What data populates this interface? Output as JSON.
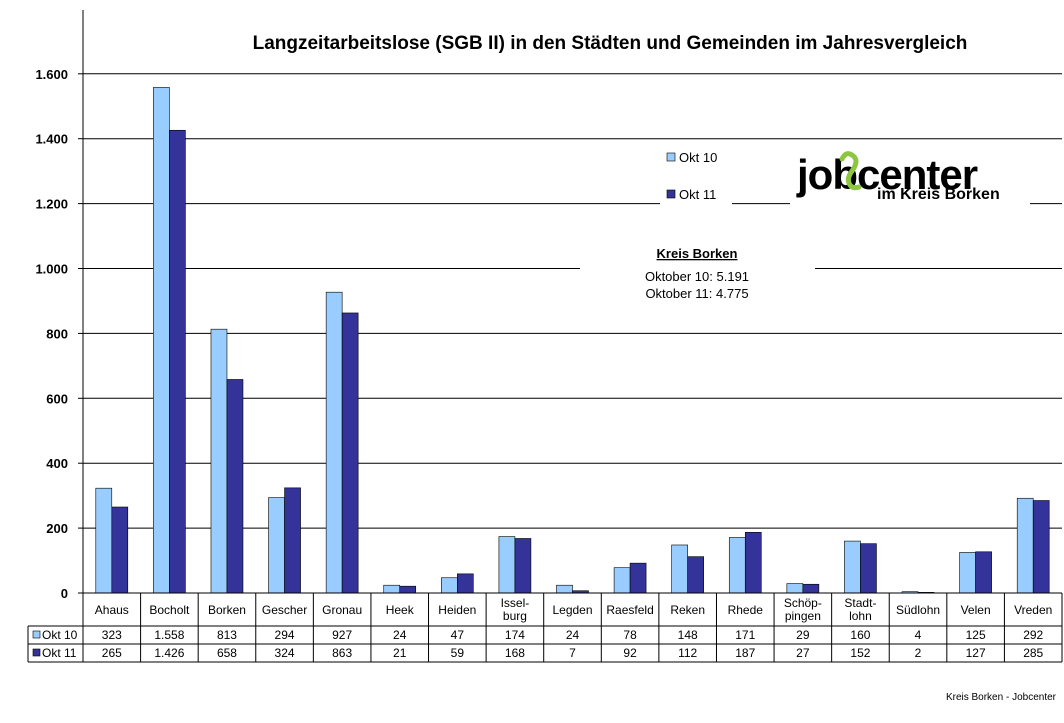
{
  "chart_data": {
    "type": "bar",
    "title": "Langzeitarbeitslose (SGB II) in den Städten und Gemeinden im Jahresvergleich",
    "categories": [
      [
        "Ahaus"
      ],
      [
        "Bocholt"
      ],
      [
        "Borken"
      ],
      [
        "Gescher"
      ],
      [
        "Gronau"
      ],
      [
        "Heek"
      ],
      [
        "Heiden"
      ],
      [
        "Issel-",
        "burg"
      ],
      [
        "Legden"
      ],
      [
        "Raesfeld"
      ],
      [
        "Reken"
      ],
      [
        "Rhede"
      ],
      [
        "Schöp-",
        "pingen"
      ],
      [
        "Stadt-",
        "lohn"
      ],
      [
        "Südlohn"
      ],
      [
        "Velen"
      ],
      [
        "Vreden"
      ]
    ],
    "series": [
      {
        "name": "Okt 10",
        "color": "#99CCFF",
        "values": [
          323,
          1558,
          813,
          294,
          927,
          24,
          47,
          174,
          24,
          78,
          148,
          171,
          29,
          160,
          4,
          125,
          292
        ],
        "labels": [
          "323",
          "1.558",
          "813",
          "294",
          "927",
          "24",
          "47",
          "174",
          "24",
          "78",
          "148",
          "171",
          "29",
          "160",
          "4",
          "125",
          "292"
        ]
      },
      {
        "name": "Okt 11",
        "color": "#333399",
        "values": [
          265,
          1426,
          658,
          324,
          863,
          21,
          59,
          168,
          7,
          92,
          112,
          187,
          27,
          152,
          2,
          127,
          285
        ],
        "labels": [
          "265",
          "1.426",
          "658",
          "324",
          "863",
          "21",
          "59",
          "168",
          "7",
          "92",
          "112",
          "187",
          "27",
          "152",
          "2",
          "127",
          "285"
        ]
      }
    ],
    "ylim": [
      0,
      1700
    ],
    "yticks": [
      0,
      200,
      400,
      600,
      800,
      1000,
      1200,
      1400,
      1600
    ],
    "ytick_labels": [
      "0",
      "200",
      "400",
      "600",
      "800",
      "1.000",
      "1.200",
      "1.400",
      "1.600"
    ],
    "grid": true,
    "legend": "top-right",
    "data_table": true
  },
  "annotation": {
    "heading": "Kreis Borken",
    "lines": [
      "Oktober 10: 5.191",
      "Oktober 11: 4.775"
    ]
  },
  "logo": {
    "text": "jobcenter",
    "subtext": "im Kreis Borken"
  },
  "footer": "Kreis Borken - Jobcenter"
}
